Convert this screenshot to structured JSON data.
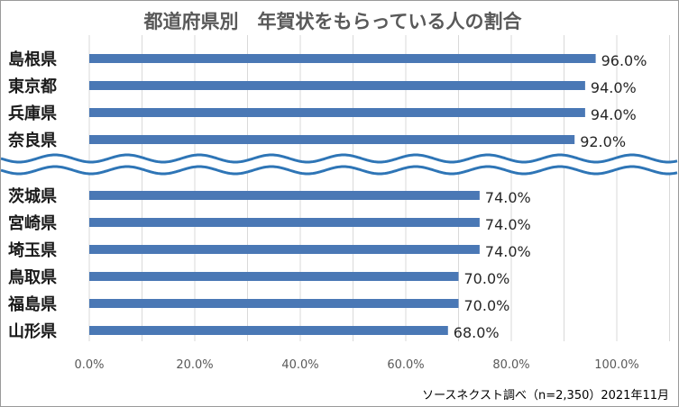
{
  "chart_data": {
    "type": "bar",
    "orientation": "horizontal",
    "title": "都道府県別　年賀状をもらっている人の割合",
    "categories": [
      "島根県",
      "東京都",
      "兵庫県",
      "奈良県",
      "茨城県",
      "宮崎県",
      "埼玉県",
      "鳥取県",
      "福島県",
      "山形県"
    ],
    "values": [
      96.0,
      94.0,
      94.0,
      92.0,
      74.0,
      74.0,
      74.0,
      70.0,
      70.0,
      68.0
    ],
    "value_labels": [
      "96.0%",
      "94.0%",
      "94.0%",
      "92.0%",
      "74.0%",
      "74.0%",
      "74.0%",
      "70.0%",
      "70.0%",
      "68.0%"
    ],
    "x_ticks": [
      "0.0%",
      "20.0%",
      "40.0%",
      "60.0%",
      "80.0%",
      "100.0%"
    ],
    "tick_values": [
      0,
      20,
      40,
      60,
      80,
      100
    ],
    "xlim": [
      0,
      110
    ],
    "grid": true,
    "axis_break": "between 奈良県 and 茨城県",
    "bar_color": "#4a78b5",
    "wave_color": "#2e75b6",
    "source": "ソースネクスト調べ（n=2,350）2021年11月"
  }
}
